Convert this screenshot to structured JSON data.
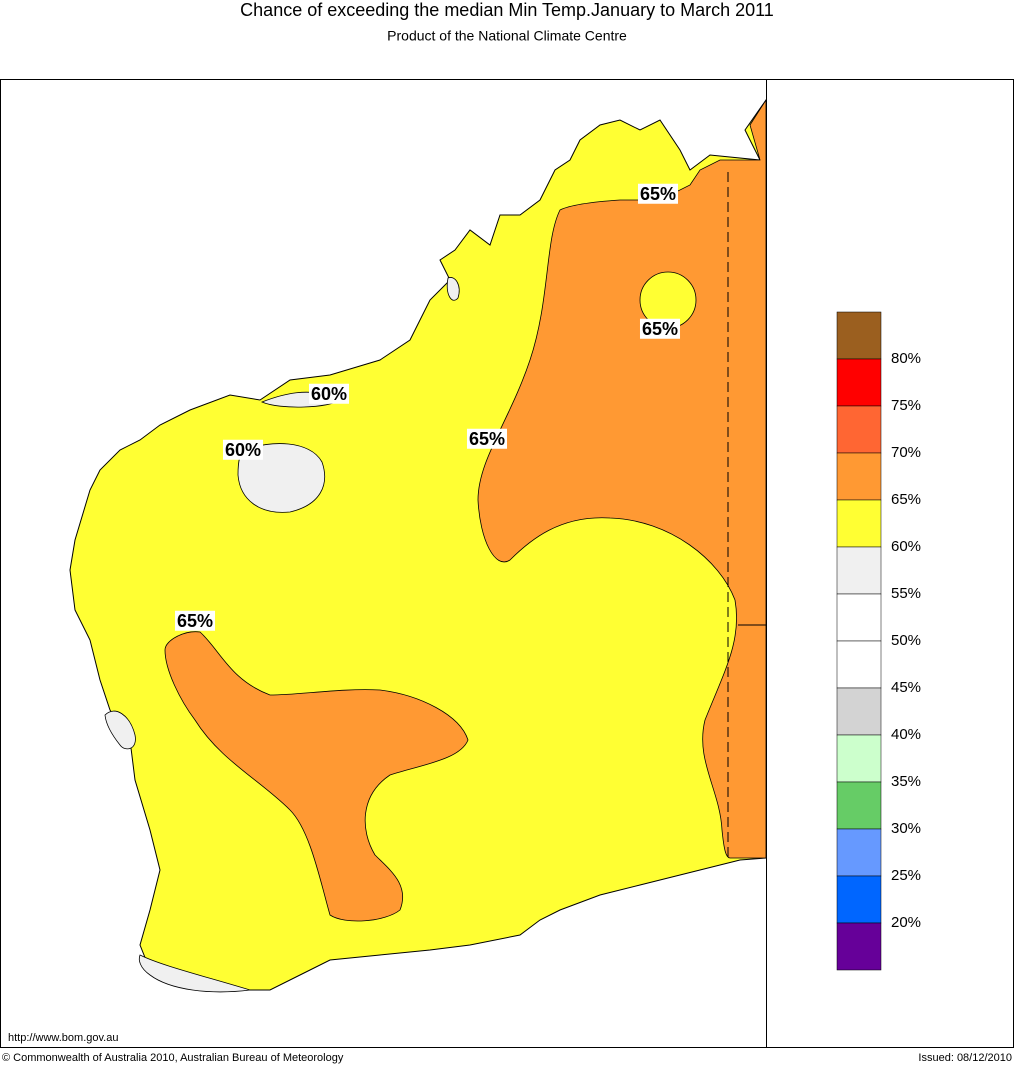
{
  "header": {
    "title": "Chance of exceeding the median Min Temp.January to March 2011",
    "subtitle": "Product of the National Climate Centre"
  },
  "map": {
    "contour_labels": [
      "65%",
      "65%",
      "65%",
      "65%",
      "60%",
      "60%"
    ]
  },
  "legend": {
    "colors": [
      "#9b5f1f",
      "#ff0000",
      "#ff6633",
      "#ff9933",
      "#ffff33",
      "#f0f0f0",
      "#ffffff",
      "#ffffff",
      "#d3d3d3",
      "#ccffcc",
      "#66cc66",
      "#6699ff",
      "#0066ff",
      "#660099"
    ],
    "labels": [
      "80%",
      "75%",
      "70%",
      "65%",
      "60%",
      "55%",
      "50%",
      "45%",
      "40%",
      "35%",
      "30%",
      "25%",
      "20%"
    ]
  },
  "footer": {
    "url": "http://www.bom.gov.au",
    "copyright": "© Commonwealth of Australia 2010, Australian Bureau of Meteorology",
    "issued": "Issued: 08/12/2010"
  }
}
